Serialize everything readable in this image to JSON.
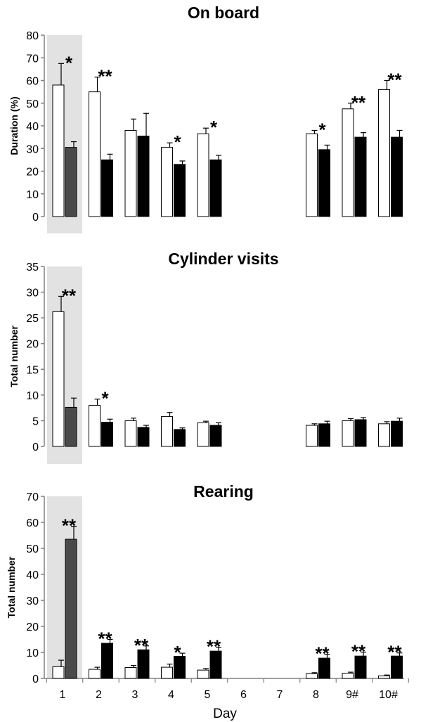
{
  "colors": {
    "open_bar": "#ffffff",
    "closed_bar": "#000000",
    "day1_closed_bar": "#4a4a4a",
    "highlight": "#e2e2e2",
    "axis": "#808080"
  },
  "chart_data": [
    {
      "type": "bar",
      "title": "On board",
      "ylabel": "Duration (%)",
      "xlabel": "",
      "ylim": [
        0,
        80
      ],
      "yticks": [
        0,
        10,
        20,
        30,
        40,
        50,
        60,
        70,
        80
      ],
      "categories": [
        "1",
        "2",
        "3",
        "4",
        "5",
        "6",
        "7",
        "8",
        "9#",
        "10#"
      ],
      "highlight_category": "1",
      "series": [
        {
          "style": "open",
          "values": [
            58,
            55,
            38,
            30.5,
            36.5,
            null,
            null,
            36.5,
            47.5,
            56
          ],
          "errors": [
            9.5,
            6.5,
            5,
            2,
            2.5,
            null,
            null,
            1.5,
            2.5,
            4
          ]
        },
        {
          "style": "filled",
          "values": [
            30.5,
            25,
            35.5,
            23,
            25,
            null,
            null,
            29.5,
            35,
            35
          ],
          "errors": [
            2.5,
            2.5,
            10,
            1.5,
            2,
            null,
            null,
            2,
            2,
            3
          ]
        }
      ],
      "significance": [
        "*",
        "**",
        "",
        "*",
        "*",
        "",
        "",
        "*",
        "**",
        "**"
      ]
    },
    {
      "type": "bar",
      "title": "Cylinder visits",
      "ylabel": "Total number",
      "xlabel": "",
      "ylim": [
        0,
        35
      ],
      "yticks": [
        0,
        5,
        10,
        15,
        20,
        25,
        30,
        35
      ],
      "categories": [
        "1",
        "2",
        "3",
        "4",
        "5",
        "6",
        "7",
        "8",
        "9#",
        "10#"
      ],
      "highlight_category": "1",
      "series": [
        {
          "style": "open",
          "values": [
            26.2,
            8,
            5,
            5.8,
            4.6,
            null,
            null,
            4.1,
            5,
            4.4
          ],
          "errors": [
            3,
            1.2,
            0.5,
            0.8,
            0.3,
            null,
            null,
            0.3,
            0.4,
            0.4
          ]
        },
        {
          "style": "filled",
          "values": [
            7.6,
            4.7,
            3.7,
            3.3,
            4.1,
            null,
            null,
            4.4,
            5.2,
            4.9
          ],
          "errors": [
            1.8,
            0.6,
            0.4,
            0.3,
            0.5,
            null,
            null,
            0.5,
            0.4,
            0.6
          ]
        }
      ],
      "significance": [
        "**",
        "*",
        "",
        "",
        "",
        "",
        "",
        "",
        "",
        ""
      ]
    },
    {
      "type": "bar",
      "title": "Rearing",
      "ylabel": "Total number",
      "xlabel": "Day",
      "ylim": [
        0,
        70
      ],
      "yticks": [
        0,
        10,
        20,
        30,
        40,
        50,
        60,
        70
      ],
      "categories": [
        "1",
        "2",
        "3",
        "4",
        "5",
        "6",
        "7",
        "8",
        "9#",
        "10#"
      ],
      "highlight_category": "1",
      "series": [
        {
          "style": "open",
          "values": [
            4.5,
            3.5,
            4.2,
            4.3,
            3.2,
            null,
            null,
            1.8,
            2,
            1
          ],
          "errors": [
            2.5,
            0.8,
            0.8,
            1.2,
            0.6,
            null,
            null,
            0.4,
            0.4,
            0.3
          ]
        },
        {
          "style": "filled",
          "values": [
            53.5,
            13.5,
            11,
            8.5,
            10.5,
            null,
            null,
            7.8,
            8.6,
            8.6
          ],
          "errors": [
            5,
            1.5,
            1.5,
            1.2,
            1.5,
            null,
            null,
            1.5,
            1.5,
            1.2
          ]
        }
      ],
      "significance": [
        "**",
        "**",
        "**",
        "*",
        "**",
        "",
        "",
        "**",
        "**",
        "**"
      ]
    }
  ]
}
